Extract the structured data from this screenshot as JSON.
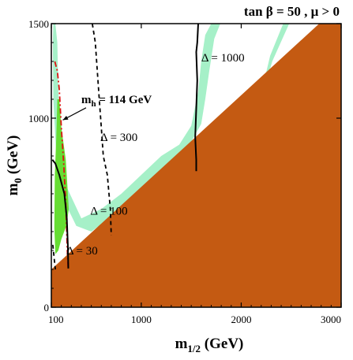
{
  "chart_data": {
    "type": "area",
    "title": "tan β = 50 ,  μ > 0",
    "xlabel": {
      "main": "m",
      "sub": "1/2",
      "unit": " (GeV)"
    },
    "ylabel": {
      "main": "m",
      "sub": "0",
      "unit": " (GeV)"
    },
    "xlim": [
      100,
      3000
    ],
    "ylim": [
      0,
      1500
    ],
    "xticks": [
      100,
      1000,
      2000,
      3000
    ],
    "yticks": [
      0,
      1000,
      1500
    ],
    "grid": false,
    "colors": {
      "excluded": "#c45a12",
      "wmap_light": "#a6f0c8",
      "gminus2": "#66dd33",
      "higgs_line": "#dd1111",
      "contour": "#000000"
    },
    "regions": [
      {
        "name": "excluded",
        "color_key": "excluded",
        "points": [
          [
            100,
            0
          ],
          [
            3000,
            0
          ],
          [
            3000,
            1500
          ],
          [
            2780,
            1500
          ],
          [
            100,
            200
          ]
        ]
      },
      {
        "name": "wmap-strip",
        "color_key": "wmap_light",
        "points": [
          [
            140,
            1500
          ],
          [
            160,
            1400
          ],
          [
            170,
            1150
          ],
          [
            190,
            850
          ],
          [
            250,
            640
          ],
          [
            400,
            470
          ],
          [
            600,
            520
          ],
          [
            800,
            600
          ],
          [
            1000,
            700
          ],
          [
            1200,
            800
          ],
          [
            1380,
            860
          ],
          [
            1500,
            960
          ],
          [
            1570,
            1140
          ],
          [
            1600,
            1300
          ],
          [
            1640,
            1440
          ],
          [
            1700,
            1500
          ],
          [
            1790,
            1500
          ],
          [
            1730,
            1420
          ],
          [
            1680,
            1250
          ],
          [
            1640,
            1100
          ],
          [
            1600,
            970
          ],
          [
            1420,
            800
          ],
          [
            1250,
            720
          ],
          [
            1050,
            650
          ],
          [
            850,
            550
          ],
          [
            650,
            460
          ],
          [
            500,
            400
          ],
          [
            350,
            430
          ],
          [
            230,
            560
          ],
          [
            150,
            800
          ],
          [
            120,
            1100
          ],
          [
            115,
            1400
          ],
          [
            120,
            1500
          ]
        ]
      },
      {
        "name": "wmap-strip-right",
        "color_key": "wmap_light",
        "points": [
          [
            2420,
            1500
          ],
          [
            2480,
            1500
          ],
          [
            2310,
            1300
          ],
          [
            2190,
            1080
          ],
          [
            2140,
            1000
          ],
          [
            2190,
            1110
          ],
          [
            2290,
            1330
          ]
        ]
      },
      {
        "name": "gminus2-region",
        "color_key": "gminus2",
        "points": [
          [
            160,
            1100
          ],
          [
            180,
            1100
          ],
          [
            200,
            950
          ],
          [
            245,
            780
          ],
          [
            275,
            520
          ],
          [
            250,
            430
          ],
          [
            200,
            360
          ],
          [
            170,
            300
          ],
          [
            140,
            280
          ],
          [
            130,
            420
          ],
          [
            135,
            700
          ],
          [
            150,
            900
          ]
        ]
      }
    ],
    "series": [
      {
        "label": "m_h = 114 GeV",
        "style": "dashdot",
        "color_key": "higgs_line",
        "points": [
          [
            135,
            1300
          ],
          [
            160,
            1250
          ],
          [
            180,
            1150
          ],
          [
            200,
            950
          ],
          [
            225,
            750
          ],
          [
            245,
            550
          ],
          [
            260,
            300
          ],
          [
            268,
            200
          ]
        ]
      },
      {
        "label": "Δ = 30",
        "style": "solid",
        "color_key": "contour",
        "points": [
          [
            110,
            780
          ],
          [
            140,
            760
          ],
          [
            180,
            700
          ],
          [
            230,
            600
          ],
          [
            255,
            470
          ],
          [
            265,
            330
          ],
          [
            270,
            205
          ]
        ]
      },
      {
        "label": "Δ = 100",
        "style": "dashed",
        "color_key": "contour",
        "points": [
          [
            115,
            330
          ],
          [
            130,
            250
          ],
          [
            140,
            200
          ]
        ]
      },
      {
        "label": "Δ = 300",
        "style": "dashed",
        "color_key": "contour",
        "points": [
          [
            510,
            1500
          ],
          [
            540,
            1400
          ],
          [
            560,
            1250
          ],
          [
            580,
            1100
          ],
          [
            600,
            950
          ],
          [
            620,
            800
          ],
          [
            660,
            700
          ],
          [
            690,
            520
          ],
          [
            700,
            380
          ]
        ]
      },
      {
        "label": "Δ = 1000",
        "style": "solid",
        "color_key": "contour",
        "points": [
          [
            1570,
            1500
          ],
          [
            1560,
            1400
          ],
          [
            1550,
            1350
          ],
          [
            1560,
            1200
          ],
          [
            1550,
            1050
          ],
          [
            1540,
            900
          ],
          [
            1550,
            780
          ],
          [
            1550,
            720
          ]
        ]
      }
    ],
    "annotations": [
      {
        "id": "delta-1000",
        "text": "Δ = 1000",
        "at": [
          1600,
          1300
        ]
      },
      {
        "id": "delta-300",
        "text": "Δ = 300",
        "at": [
          590,
          880
        ]
      },
      {
        "id": "delta-100",
        "text": "Δ = 100",
        "at": [
          490,
          490
        ]
      },
      {
        "id": "delta-30",
        "text": "Δ = 30",
        "at": [
          250,
          280
        ]
      }
    ],
    "higgs_label": {
      "main": "m",
      "sub": "h",
      "rest": " = 114 GeV",
      "at": [
        400,
        1080
      ],
      "arrow_to": [
        215,
        990
      ]
    }
  }
}
